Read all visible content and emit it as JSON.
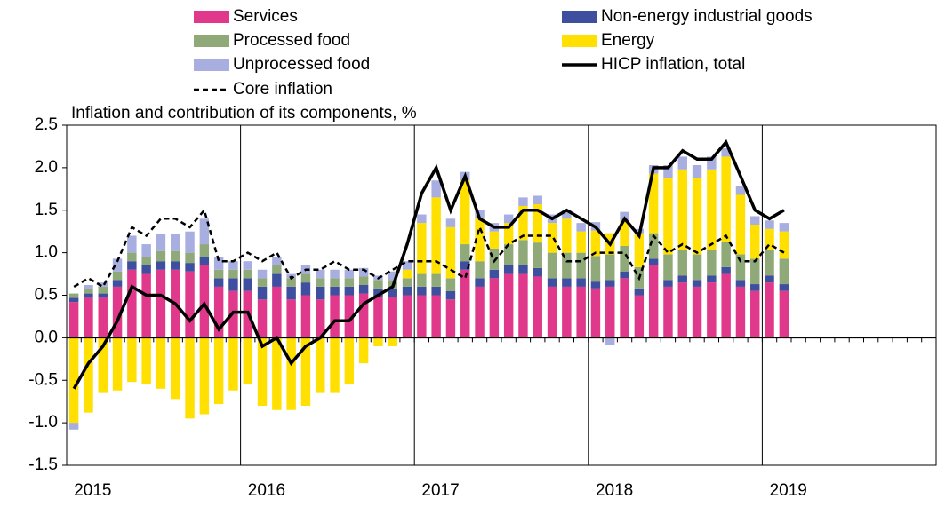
{
  "chart_data": {
    "type": "bar",
    "stacked": true,
    "title": "Inflation and contribution of its components, %",
    "categories": [
      "2015",
      null,
      null,
      null,
      null,
      null,
      null,
      null,
      null,
      null,
      null,
      null,
      "2016",
      null,
      null,
      null,
      null,
      null,
      null,
      null,
      null,
      null,
      null,
      null,
      "2017",
      null,
      null,
      null,
      null,
      null,
      null,
      null,
      null,
      null,
      null,
      null,
      "2018",
      null,
      null,
      null,
      null,
      null,
      null,
      null,
      null,
      null,
      null,
      null,
      "2019",
      null,
      null,
      null,
      null,
      null,
      null,
      null,
      null,
      null,
      null,
      null
    ],
    "ylim": [
      -1.5,
      2.5
    ],
    "yticks": [
      {
        "value": -1.5,
        "label": "-1.5"
      },
      {
        "value": -1,
        "label": "-1.0"
      },
      {
        "value": -0.5,
        "label": "-0.5"
      },
      {
        "value": 0,
        "label": "0.0"
      },
      {
        "value": 0.5,
        "label": "0.5"
      },
      {
        "value": 1,
        "label": "1.0"
      },
      {
        "value": 1.5,
        "label": "1.5"
      },
      {
        "value": 2,
        "label": "2.0"
      },
      {
        "value": 2.5,
        "label": "2.5"
      }
    ],
    "series": [
      {
        "name": "Services",
        "kind": "bar",
        "color": "#e0388a",
        "values": [
          0.42,
          0.47,
          0.47,
          0.6,
          0.8,
          0.75,
          0.8,
          0.8,
          0.78,
          0.85,
          0.6,
          0.55,
          0.55,
          0.45,
          0.6,
          0.45,
          0.5,
          0.45,
          0.5,
          0.5,
          0.52,
          0.48,
          0.48,
          0.5,
          0.5,
          0.5,
          0.45,
          0.8,
          0.6,
          0.7,
          0.75,
          0.75,
          0.72,
          0.6,
          0.6,
          0.6,
          0.58,
          0.6,
          0.7,
          0.5,
          0.85,
          0.6,
          0.65,
          0.6,
          0.65,
          0.75,
          0.6,
          0.55,
          0.65,
          0.55,
          null,
          null,
          null,
          null,
          null,
          null,
          null,
          null,
          null,
          null
        ]
      },
      {
        "name": "Non-energy industrial goods",
        "kind": "bar",
        "color": "#3e4fa0",
        "values": [
          0.05,
          0.05,
          0.05,
          0.08,
          0.1,
          0.1,
          0.1,
          0.1,
          0.1,
          0.1,
          0.1,
          0.15,
          0.15,
          0.15,
          0.15,
          0.15,
          0.15,
          0.15,
          0.1,
          0.1,
          0.1,
          0.1,
          0.1,
          0.1,
          0.1,
          0.1,
          0.1,
          0.1,
          0.1,
          0.1,
          0.1,
          0.1,
          0.1,
          0.1,
          0.1,
          0.1,
          0.08,
          0.08,
          0.08,
          0.08,
          0.08,
          0.08,
          0.08,
          0.08,
          0.08,
          0.08,
          0.08,
          0.08,
          0.08,
          0.08,
          null,
          null,
          null,
          null,
          null,
          null,
          null,
          null,
          null,
          null
        ]
      },
      {
        "name": "Processed food",
        "kind": "bar",
        "color": "#8faa78",
        "values": [
          0.05,
          0.05,
          0.08,
          0.1,
          0.1,
          0.1,
          0.12,
          0.12,
          0.12,
          0.15,
          0.1,
          0.1,
          0.1,
          0.1,
          0.1,
          0.1,
          0.1,
          0.1,
          0.1,
          0.1,
          0.1,
          0.1,
          0.1,
          0.1,
          0.15,
          0.15,
          0.15,
          0.2,
          0.2,
          0.25,
          0.25,
          0.3,
          0.3,
          0.3,
          0.3,
          0.3,
          0.3,
          0.3,
          0.3,
          0.25,
          0.3,
          0.3,
          0.3,
          0.3,
          0.3,
          0.3,
          0.3,
          0.3,
          0.3,
          0.3,
          null,
          null,
          null,
          null,
          null,
          null,
          null,
          null,
          null,
          null
        ]
      },
      {
        "name": "Energy",
        "kind": "bar",
        "color": "#ffe000",
        "values": [
          -1.0,
          -0.88,
          -0.65,
          -0.62,
          -0.52,
          -0.55,
          -0.6,
          -0.72,
          -0.95,
          -0.9,
          -0.78,
          -0.62,
          -0.55,
          -0.8,
          -0.85,
          -0.85,
          -0.8,
          -0.65,
          -0.65,
          -0.55,
          -0.3,
          -0.1,
          -0.1,
          0.1,
          0.6,
          0.9,
          0.6,
          0.75,
          0.5,
          0.2,
          0.25,
          0.4,
          0.45,
          0.35,
          0.4,
          0.25,
          0.3,
          0.25,
          0.3,
          0.4,
          0.7,
          0.9,
          0.95,
          0.9,
          0.95,
          1.0,
          0.7,
          0.4,
          0.25,
          0.32,
          null,
          null,
          null,
          null,
          null,
          null,
          null,
          null,
          null,
          null
        ]
      },
      {
        "name": "Unprocessed food",
        "kind": "bar",
        "color": "#a8aee0",
        "values": [
          -0.08,
          0.05,
          0.05,
          0.15,
          0.2,
          0.15,
          0.2,
          0.2,
          0.25,
          0.3,
          0.15,
          0.1,
          0.1,
          0.1,
          0.1,
          0.05,
          0.1,
          0.1,
          0.1,
          0.1,
          0.1,
          0.05,
          0.1,
          0.1,
          0.1,
          0.2,
          0.1,
          0.1,
          0.1,
          0.1,
          0.1,
          0.1,
          0.1,
          0.1,
          0.1,
          0.1,
          0.1,
          -0.08,
          0.1,
          0.05,
          0.1,
          0.15,
          0.15,
          0.15,
          0.15,
          0.1,
          0.1,
          0.1,
          0.1,
          0.1,
          null,
          null,
          null,
          null,
          null,
          null,
          null,
          null,
          null,
          null
        ]
      },
      {
        "name": "HICP inflation, total",
        "kind": "line",
        "color": "#000000",
        "dashed": false,
        "values": [
          -0.6,
          -0.3,
          -0.1,
          0.2,
          0.6,
          0.5,
          0.5,
          0.4,
          0.2,
          0.4,
          0.1,
          0.3,
          0.3,
          -0.1,
          0.0,
          -0.3,
          -0.1,
          0.0,
          0.2,
          0.2,
          0.4,
          0.5,
          0.6,
          1.1,
          1.7,
          2.0,
          1.5,
          1.9,
          1.4,
          1.3,
          1.3,
          1.5,
          1.5,
          1.4,
          1.5,
          1.4,
          1.3,
          1.1,
          1.4,
          1.2,
          2.0,
          2.0,
          2.2,
          2.1,
          2.1,
          2.3,
          1.9,
          1.5,
          1.4,
          1.5,
          null,
          null,
          null,
          null,
          null,
          null,
          null,
          null,
          null,
          null
        ]
      },
      {
        "name": "Core inflation",
        "kind": "line",
        "color": "#000000",
        "dashed": true,
        "values": [
          0.6,
          0.7,
          0.6,
          0.9,
          1.3,
          1.2,
          1.4,
          1.4,
          1.3,
          1.5,
          0.9,
          0.9,
          1.0,
          0.9,
          1.0,
          0.7,
          0.8,
          0.8,
          0.9,
          0.8,
          0.8,
          0.7,
          0.8,
          0.9,
          0.9,
          0.9,
          0.8,
          0.7,
          1.3,
          0.9,
          1.1,
          1.2,
          1.2,
          1.2,
          0.9,
          0.9,
          1.0,
          1.0,
          1.0,
          0.7,
          1.2,
          1.0,
          1.1,
          1.0,
          1.1,
          1.2,
          0.9,
          0.9,
          1.1,
          1.0,
          null,
          null,
          null,
          null,
          null,
          null,
          null,
          null,
          null,
          null
        ]
      }
    ]
  }
}
